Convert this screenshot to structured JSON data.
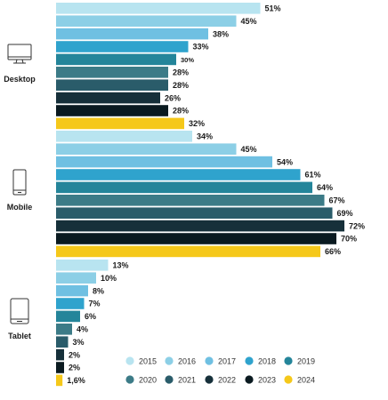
{
  "chart_data": {
    "type": "bar",
    "orientation": "horizontal",
    "legend_position": "bottom-right",
    "grid": false,
    "xlim": [
      0,
      72
    ],
    "years": [
      "2015",
      "2016",
      "2017",
      "2018",
      "2019",
      "2020",
      "2021",
      "2022",
      "2023",
      "2024"
    ],
    "colors": [
      "#b8e4f0",
      "#8ccfe6",
      "#6fc0e2",
      "#2fa3cd",
      "#24859a",
      "#3c7b87",
      "#2a5c6a",
      "#16303a",
      "#0a1a20",
      "#f5c81a"
    ],
    "groups": [
      {
        "name": "Desktop",
        "icon": "desktop-icon",
        "values": [
          51,
          45,
          38,
          33,
          30,
          28,
          28,
          26,
          28,
          32
        ],
        "labels": [
          "51%",
          "45%",
          "38%",
          "33%",
          "30%",
          "28%",
          "28%",
          "26%",
          "28%",
          "32%"
        ]
      },
      {
        "name": "Mobile",
        "icon": "mobile-icon",
        "values": [
          34,
          45,
          54,
          61,
          64,
          67,
          69,
          72,
          70,
          66
        ],
        "labels": [
          "34%",
          "45%",
          "54%",
          "61%",
          "64%",
          "67%",
          "69%",
          "72%",
          "70%",
          "66%"
        ]
      },
      {
        "name": "Tablet",
        "icon": "tablet-icon",
        "values": [
          13,
          10,
          8,
          7,
          6,
          4,
          3,
          2,
          2,
          1.6
        ],
        "labels": [
          "13%",
          "10%",
          "8%",
          "7%",
          "6%",
          "4%",
          "3%",
          "2%",
          "2%",
          "1,6%"
        ]
      }
    ]
  }
}
